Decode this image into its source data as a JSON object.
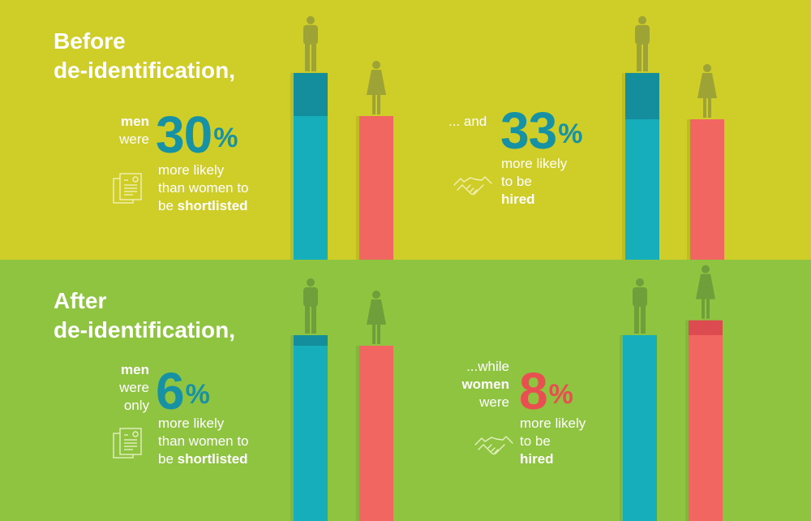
{
  "colors": {
    "top_bg": "#cfcd27",
    "bottom_bg": "#8fc440",
    "men_bar": "#15aeba",
    "men_bar_diff": "#148e9c",
    "women_bar": "#f26662",
    "women_bar_diff": "#dc4b4f",
    "top_figure": "#9da335",
    "bottom_figure": "#6f9f3a",
    "number_blue": "#1792a4",
    "number_red": "#e84f51",
    "text": "#ffffff"
  },
  "icons": {
    "document": "cv-document-icon",
    "handshake": "handshake-icon",
    "man": "man-figure-icon",
    "woman": "woman-figure-icon"
  },
  "before": {
    "heading_line1": "Before",
    "heading_line2": "de-identification,",
    "shortlist": {
      "label_bold": "men",
      "label": "were",
      "number": "30",
      "percent": "%",
      "line1": "more likely",
      "line2": "than women to",
      "line3_pre": "be ",
      "line3_bold": "shortlisted"
    },
    "hired": {
      "label": "... and",
      "number": "33",
      "percent": "%",
      "line1": "more likely",
      "line2": "to be",
      "line3_bold": "hired"
    }
  },
  "after": {
    "heading_line1": "After",
    "heading_line2": "de-identification,",
    "shortlist": {
      "label_bold": "men",
      "label": "were",
      "label2": "only",
      "number": "6",
      "percent": "%",
      "line1": "more likely",
      "line2": "than women to",
      "line3_pre": "be ",
      "line3_bold": "shortlisted"
    },
    "hired": {
      "label": "...while",
      "label_bold": "women",
      "label2": "were",
      "number": "8",
      "percent": "%",
      "line1": "more likely",
      "line2": "to be",
      "line3_bold": "hired"
    }
  },
  "chart_data": [
    {
      "type": "bar",
      "categories": [
        "men",
        "women"
      ],
      "values": [
        130,
        100
      ],
      "ylim": [
        0,
        135
      ]
    },
    {
      "type": "bar",
      "categories": [
        "men",
        "women"
      ],
      "values": [
        133,
        100
      ],
      "ylim": [
        0,
        135
      ]
    },
    {
      "type": "bar",
      "categories": [
        "men",
        "women"
      ],
      "values": [
        106,
        100
      ],
      "ylim": [
        0,
        110
      ]
    },
    {
      "type": "bar",
      "categories": [
        "men",
        "women"
      ],
      "values": [
        100,
        108
      ],
      "ylim": [
        0,
        110
      ]
    }
  ]
}
